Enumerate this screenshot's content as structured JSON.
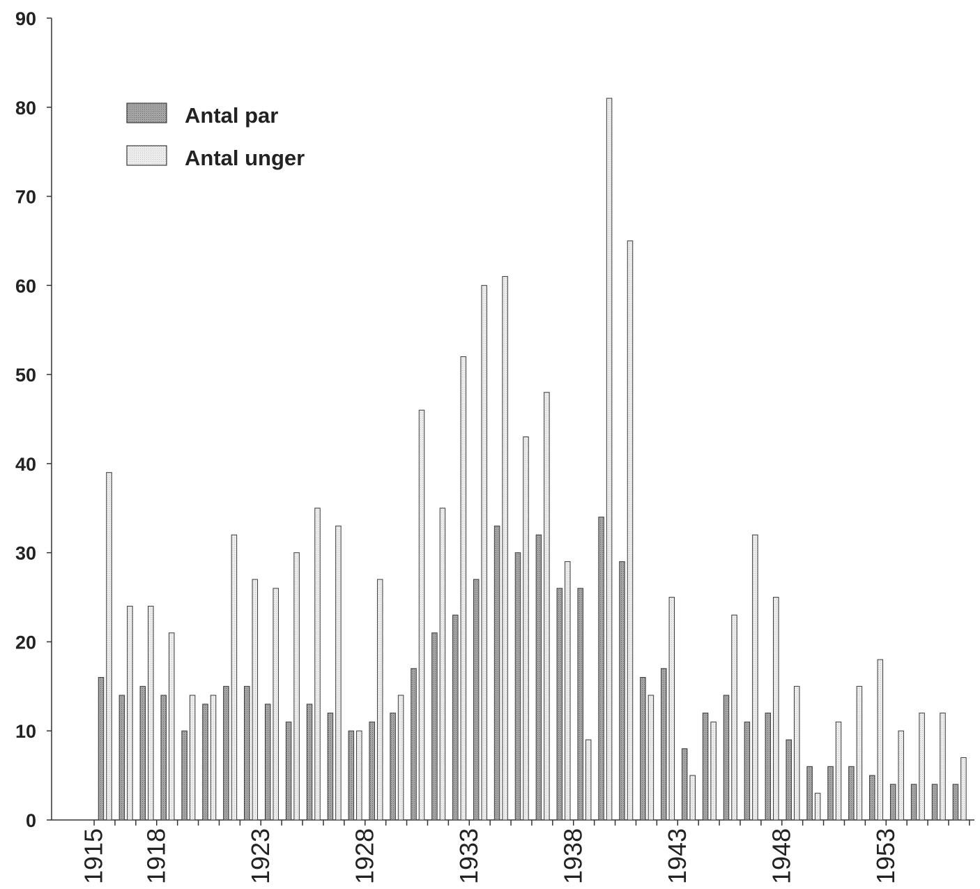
{
  "chart_data": {
    "type": "bar",
    "title": "",
    "xlabel": "",
    "ylabel": "",
    "ylim": [
      0,
      90
    ],
    "yticks": [
      0,
      10,
      20,
      30,
      40,
      50,
      60,
      70,
      80,
      90
    ],
    "grid": false,
    "legend_position": "top-left",
    "categories": [
      "1915",
      "1916",
      "1917",
      "1918",
      "1919",
      "1920",
      "1921",
      "1922",
      "1923",
      "1924",
      "1925",
      "1926",
      "1927",
      "1928",
      "1929",
      "1930",
      "1931",
      "1932",
      "1933",
      "1934",
      "1935",
      "1936",
      "1937",
      "1938",
      "1939",
      "1940",
      "1941",
      "1942",
      "1943",
      "1944",
      "1945",
      "1946",
      "1947",
      "1948",
      "1949",
      "1950",
      "1951",
      "1952",
      "1953",
      "1954",
      "1955",
      "1956"
    ],
    "tick_labels": [
      "1915",
      "1918",
      "1923",
      "1928",
      "1933",
      "1938",
      "1943",
      "1948",
      "1953"
    ],
    "series": [
      {
        "name": "Antal par",
        "color": "#9a9a9a",
        "values": [
          16,
          14,
          15,
          14,
          10,
          13,
          15,
          15,
          13,
          11,
          13,
          12,
          10,
          11,
          12,
          17,
          21,
          23,
          27,
          33,
          30,
          32,
          26,
          26,
          34,
          29,
          16,
          17,
          8,
          12,
          14,
          11,
          12,
          9,
          6,
          6,
          6,
          5,
          4,
          4,
          4,
          4
        ]
      },
      {
        "name": "Antal unger",
        "color": "#e2e2e2",
        "values": [
          39,
          24,
          24,
          21,
          14,
          14,
          32,
          27,
          26,
          30,
          35,
          33,
          10,
          27,
          14,
          46,
          35,
          52,
          60,
          61,
          43,
          48,
          29,
          9,
          81,
          65,
          14,
          25,
          5,
          11,
          23,
          32,
          25,
          15,
          3,
          11,
          15,
          18,
          10,
          12,
          12,
          7
        ]
      }
    ]
  }
}
